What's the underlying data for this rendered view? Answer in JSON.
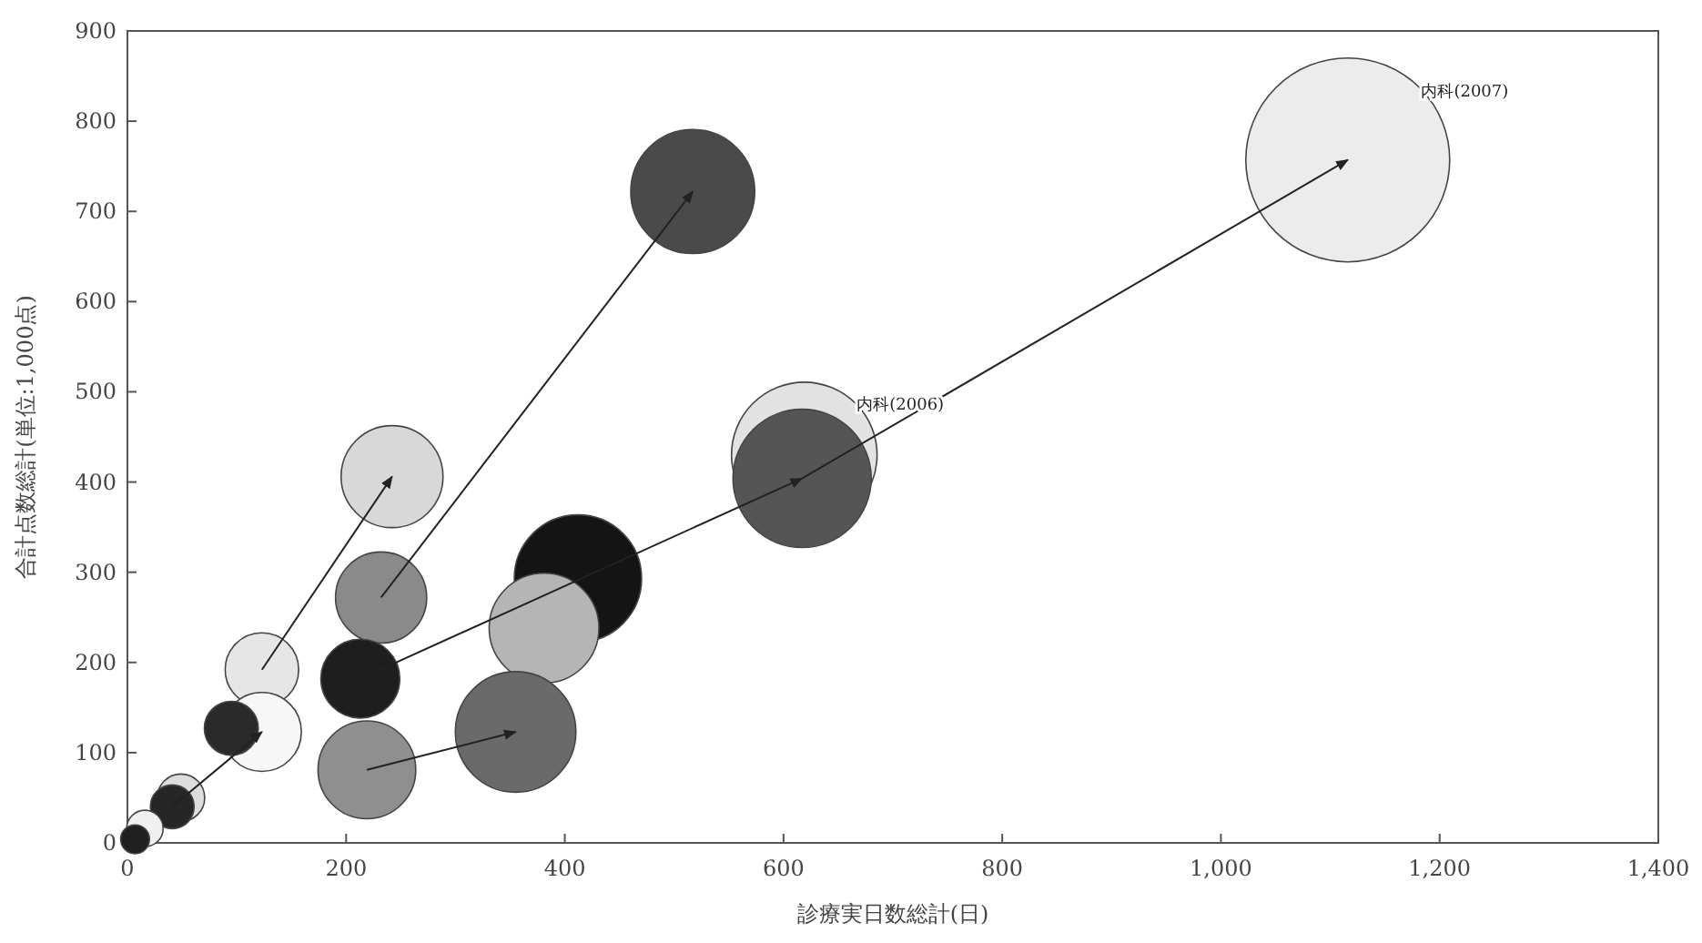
{
  "chart_data": {
    "type": "bubble",
    "xlabel": "診療実日数総計(日)",
    "ylabel": "合計点数総計(単位:1,000点)",
    "xlim": [
      0,
      1400
    ],
    "xticks": [
      0,
      200,
      400,
      600,
      800,
      {
        "value": 1000,
        "label": "1,000"
      },
      {
        "value": 1200,
        "label": "1,200"
      },
      {
        "value": 1400,
        "label": "1,400"
      }
    ],
    "ylim": [
      0,
      900
    ],
    "yticks": [
      0,
      100,
      200,
      300,
      400,
      500,
      600,
      700,
      800,
      900
    ],
    "grid": false,
    "series": [
      {
        "name": "内科(2007)",
        "color": "#ececec",
        "x": [
          1116
        ],
        "values": [
          757
        ],
        "sizes": [
          1
        ]
      },
      {
        "name": "内科(2006)",
        "color": "#e2e2e2",
        "x": [
          619
        ],
        "values": [
          430
        ],
        "sizes": [
          0.51
        ]
      },
      {
        "color": "#555555",
        "x": [
          617
        ],
        "values": [
          404
        ],
        "sizes": [
          0.46
        ]
      },
      {
        "color": "#4a4a4a",
        "x": [
          517
        ],
        "values": [
          722
        ],
        "sizes": [
          0.37
        ]
      },
      {
        "color": "#d8d8d8",
        "x": [
          242
        ],
        "values": [
          406
        ],
        "sizes": [
          0.25
        ]
      },
      {
        "color": "#8a8a8a",
        "x": [
          232
        ],
        "values": [
          272
        ],
        "sizes": [
          0.2
        ]
      },
      {
        "color": "#141414",
        "x": [
          412
        ],
        "values": [
          293
        ],
        "sizes": [
          0.39
        ]
      },
      {
        "color": "#b5b5b5",
        "x": [
          381
        ],
        "values": [
          238
        ],
        "sizes": [
          0.29
        ]
      },
      {
        "color": "#1e1e1e",
        "x": [
          213
        ],
        "values": [
          182
        ],
        "sizes": [
          0.15
        ]
      },
      {
        "color": "#6a6a6a",
        "x": [
          355
        ],
        "values": [
          123
        ],
        "sizes": [
          0.35
        ]
      },
      {
        "color": "#8f8f8f",
        "x": [
          219
        ],
        "values": [
          81
        ],
        "sizes": [
          0.23
        ]
      },
      {
        "color": "#e6e6e6",
        "x": [
          123
        ],
        "values": [
          192
        ],
        "sizes": [
          0.13
        ]
      },
      {
        "color": "#f7f7f7",
        "x": [
          123
        ],
        "values": [
          123
        ],
        "sizes": [
          0.15
        ]
      },
      {
        "color": "#2a2a2a",
        "x": [
          95
        ],
        "values": [
          127
        ],
        "sizes": [
          0.07
        ]
      },
      {
        "color": "#dddddd",
        "x": [
          49
        ],
        "values": [
          50
        ],
        "sizes": [
          0.054
        ]
      },
      {
        "color": "#262626",
        "x": [
          41
        ],
        "values": [
          40
        ],
        "sizes": [
          0.046
        ]
      },
      {
        "color": "#f0f0f0",
        "x": [
          16
        ],
        "values": [
          16
        ],
        "sizes": [
          0.032
        ]
      },
      {
        "color": "#202020",
        "x": [
          7
        ],
        "values": [
          4
        ],
        "sizes": [
          0.02
        ]
      }
    ]
  }
}
